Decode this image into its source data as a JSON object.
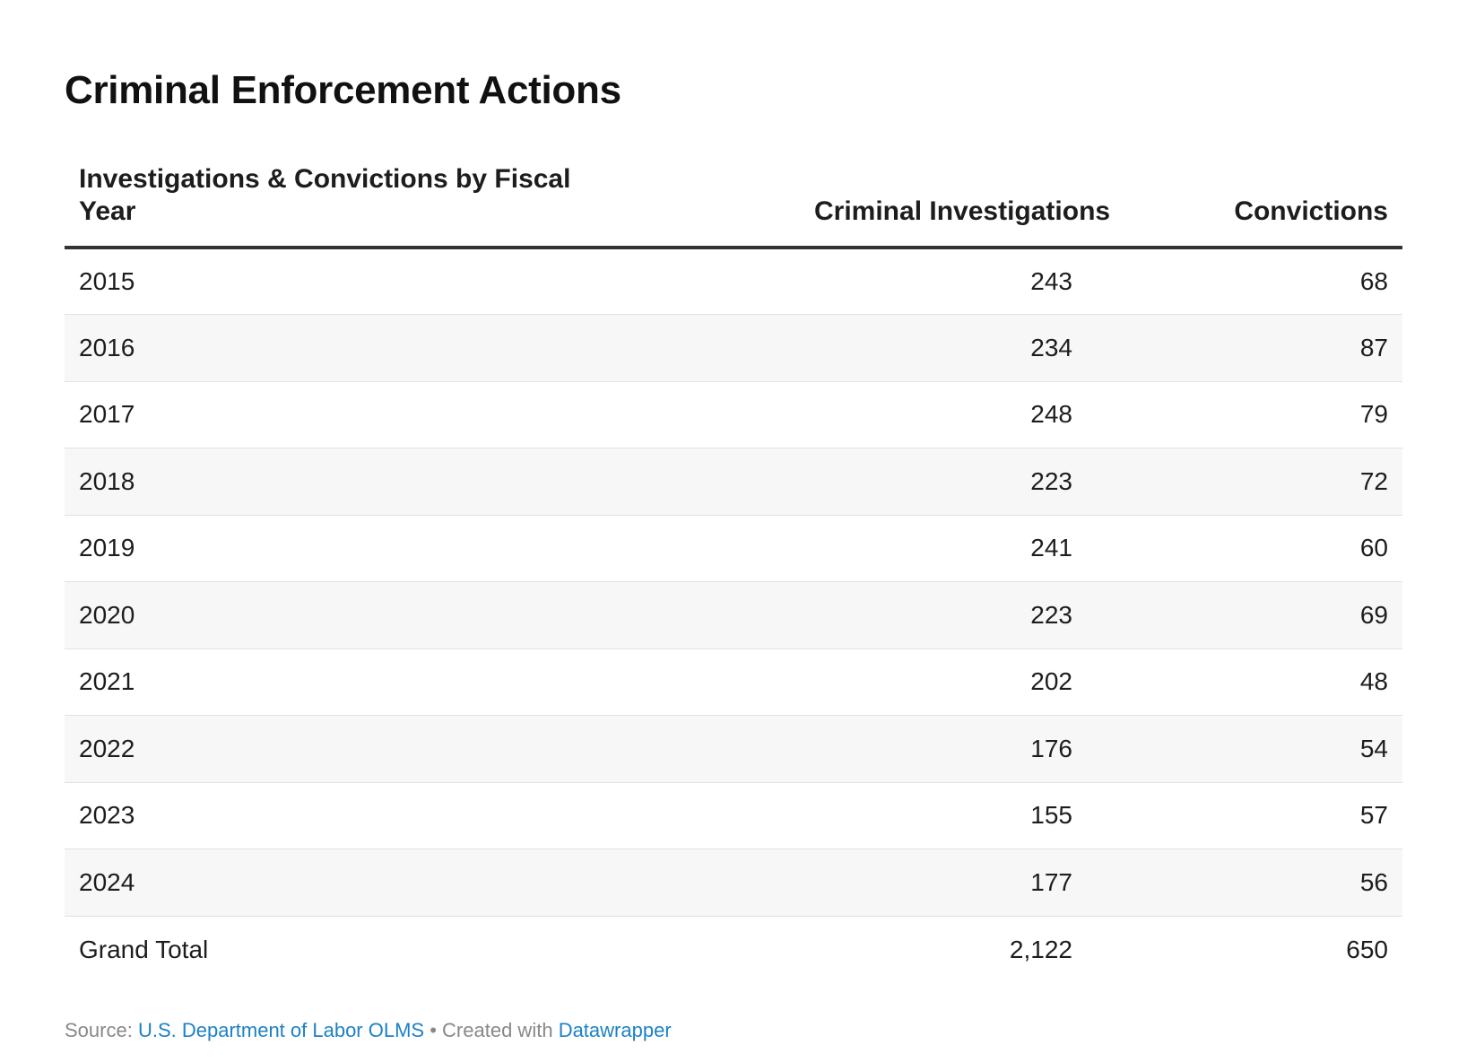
{
  "title": "Criminal Enforcement Actions",
  "table": {
    "headers": {
      "year": "Investigations & Convictions by Fiscal Year",
      "investigations": "Criminal Investigations",
      "convictions": "Convictions"
    },
    "rows": [
      {
        "year": "2015",
        "investigations": "243",
        "convictions": "68"
      },
      {
        "year": "2016",
        "investigations": "234",
        "convictions": "87"
      },
      {
        "year": "2017",
        "investigations": "248",
        "convictions": "79"
      },
      {
        "year": "2018",
        "investigations": "223",
        "convictions": "72"
      },
      {
        "year": "2019",
        "investigations": "241",
        "convictions": "60"
      },
      {
        "year": "2020",
        "investigations": "223",
        "convictions": "69"
      },
      {
        "year": "2021",
        "investigations": "202",
        "convictions": "48"
      },
      {
        "year": "2022",
        "investigations": "176",
        "convictions": "54"
      },
      {
        "year": "2023",
        "investigations": "155",
        "convictions": "57"
      },
      {
        "year": "2024",
        "investigations": "177",
        "convictions": "56"
      }
    ],
    "total": {
      "label": "Grand Total",
      "investigations": "2,122",
      "convictions": "650"
    }
  },
  "footer": {
    "source_label": "Source:",
    "source_name": "U.S. Department of Labor OLMS",
    "separator": "•",
    "created_label": "Created with",
    "tool_name": "Datawrapper"
  },
  "colors": {
    "link": "#1d81c6",
    "header_rule": "#333333",
    "row_alt": "#f7f7f7",
    "row_divider": "#e2e2e2"
  },
  "chart_data": {
    "type": "table",
    "title": "Criminal Enforcement Actions",
    "columns": [
      "Investigations & Convictions by Fiscal Year",
      "Criminal Investigations",
      "Convictions"
    ],
    "categories": [
      "2015",
      "2016",
      "2017",
      "2018",
      "2019",
      "2020",
      "2021",
      "2022",
      "2023",
      "2024"
    ],
    "series": [
      {
        "name": "Criminal Investigations",
        "values": [
          243,
          234,
          248,
          223,
          241,
          223,
          202,
          176,
          155,
          177
        ]
      },
      {
        "name": "Convictions",
        "values": [
          68,
          87,
          79,
          72,
          60,
          69,
          48,
          54,
          57,
          56
        ]
      }
    ],
    "totals": {
      "label": "Grand Total",
      "Criminal Investigations": 2122,
      "Convictions": 650
    }
  }
}
